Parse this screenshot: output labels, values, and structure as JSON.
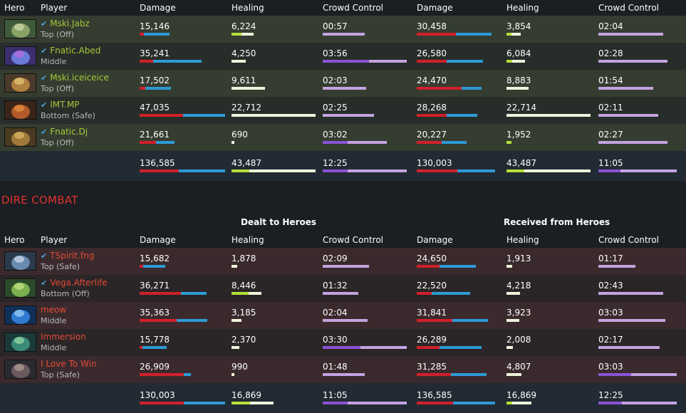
{
  "columns": {
    "hero": "Hero",
    "player": "Player",
    "damage": "Damage",
    "healing": "Healing",
    "cc": "Crowd Control"
  },
  "section_title": "DIRE COMBAT",
  "groups": {
    "dealt": "Dealt to Heroes",
    "received": "Received from Heroes"
  },
  "colors": {
    "damage_primary": "#d0202a",
    "damage_secondary": "#2d9bd6",
    "healing_primary": "#b5e03a",
    "healing_secondary": "#eef4dc",
    "cc_primary": "#8b52d6",
    "cc_secondary": "#c4a3e0",
    "radiant_name": "#a8c83a",
    "dire_name": "#e24a36"
  },
  "radiant": {
    "players": [
      {
        "name": "Mski.Jabz",
        "lane": "Top (Off)",
        "verified": true,
        "hero_icon": "hero-portrait-green",
        "dealt": {
          "damage": "15,146",
          "dmg_bar": [
            0.05,
            0.3
          ],
          "healing": "6,224",
          "heal_bar": [
            0.12,
            0.14
          ],
          "cc": "00:57",
          "cc_bar": [
            0.0,
            0.5
          ]
        },
        "received": {
          "damage": "30,458",
          "dmg_bar": [
            0.5,
            0.45
          ],
          "healing": "3,854",
          "heal_bar": [
            0.06,
            0.11
          ],
          "cc": "02:04",
          "cc_bar": [
            0.0,
            0.83
          ]
        }
      },
      {
        "name": "Fnatic.Abed",
        "lane": "Middle",
        "verified": true,
        "hero_icon": "hero-portrait-blue",
        "dealt": {
          "damage": "35,241",
          "dmg_bar": [
            0.16,
            0.57
          ],
          "healing": "4,250",
          "heal_bar": [
            0.0,
            0.17
          ],
          "cc": "03:56",
          "cc_bar": [
            0.55,
            0.45
          ]
        },
        "received": {
          "damage": "26,580",
          "dmg_bar": [
            0.38,
            0.46
          ],
          "healing": "6,084",
          "heal_bar": [
            0.07,
            0.15
          ],
          "cc": "02:28",
          "cc_bar": [
            0.0,
            0.88
          ]
        }
      },
      {
        "name": "Mski.iceiceice",
        "lane": "Top (Off)",
        "verified": true,
        "hero_icon": "hero-portrait-brown",
        "dealt": {
          "damage": "17,502",
          "dmg_bar": [
            0.07,
            0.3
          ],
          "healing": "9,611",
          "heal_bar": [
            0.0,
            0.4
          ],
          "cc": "02:03",
          "cc_bar": [
            0.0,
            0.52
          ]
        },
        "received": {
          "damage": "24,470",
          "dmg_bar": [
            0.57,
            0.25
          ],
          "healing": "8,883",
          "heal_bar": [
            0.0,
            0.26
          ],
          "cc": "01:54",
          "cc_bar": [
            0.0,
            0.7
          ]
        }
      },
      {
        "name": "IMT.MP",
        "lane": "Bottom (Safe)",
        "verified": true,
        "hero_icon": "hero-portrait-orange",
        "dealt": {
          "damage": "47,035",
          "dmg_bar": [
            0.51,
            0.49
          ],
          "healing": "22,712",
          "heal_bar": [
            0.0,
            1.0
          ],
          "cc": "02:25",
          "cc_bar": [
            0.0,
            0.61
          ]
        },
        "received": {
          "damage": "28,268",
          "dmg_bar": [
            0.38,
            0.39
          ],
          "healing": "22,714",
          "heal_bar": [
            0.0,
            1.0
          ],
          "cc": "02:11",
          "cc_bar": [
            0.0,
            0.76
          ]
        }
      },
      {
        "name": "Fnatic.Dj",
        "lane": "Top (Off)",
        "verified": true,
        "hero_icon": "hero-portrait-tan",
        "dealt": {
          "damage": "21,661",
          "dmg_bar": [
            0.19,
            0.22
          ],
          "healing": "690",
          "heal_bar": [
            0.0,
            0.03
          ],
          "cc": "03:02",
          "cc_bar": [
            0.3,
            0.47
          ]
        },
        "received": {
          "damage": "20,227",
          "dmg_bar": [
            0.32,
            0.32
          ],
          "healing": "1,952",
          "heal_bar": [
            0.06,
            0.0
          ],
          "cc": "02:27",
          "cc_bar": [
            0.0,
            0.88
          ]
        }
      }
    ],
    "totals": {
      "dealt": {
        "damage": "136,585",
        "dmg_bar": [
          0.46,
          0.54
        ],
        "healing": "43,487",
        "heal_bar": [
          0.21,
          0.79
        ],
        "cc": "12:25",
        "cc_bar": [
          0.3,
          0.7
        ]
      },
      "received": {
        "damage": "130,003",
        "dmg_bar": [
          0.52,
          0.48
        ],
        "healing": "43,487",
        "heal_bar": [
          0.21,
          0.79
        ],
        "cc": "11:05",
        "cc_bar": [
          0.28,
          0.72
        ]
      }
    }
  },
  "dire": {
    "players": [
      {
        "name": "TSpirit.fng",
        "lane": "Top (Safe)",
        "verified": true,
        "hero_icon": "hero-portrait-steel",
        "dealt": {
          "damage": "15,682",
          "dmg_bar": [
            0.04,
            0.26
          ],
          "healing": "1,878",
          "heal_bar": [
            0.0,
            0.07
          ],
          "cc": "02:09",
          "cc_bar": [
            0.0,
            0.55
          ]
        },
        "received": {
          "damage": "24,650",
          "dmg_bar": [
            0.29,
            0.46
          ],
          "healing": "1,913",
          "heal_bar": [
            0.0,
            0.07
          ],
          "cc": "01:17",
          "cc_bar": [
            0.0,
            0.47
          ]
        }
      },
      {
        "name": "Vega.Afterlife",
        "lane": "Bottom (Off)",
        "verified": true,
        "hero_icon": "hero-portrait-moss",
        "dealt": {
          "damage": "36,271",
          "dmg_bar": [
            0.48,
            0.3
          ],
          "healing": "8,446",
          "heal_bar": [
            0.2,
            0.15
          ],
          "cc": "01:32",
          "cc_bar": [
            0.0,
            0.42
          ]
        },
        "received": {
          "damage": "22,520",
          "dmg_bar": [
            0.19,
            0.49
          ],
          "healing": "4,218",
          "heal_bar": [
            0.0,
            0.16
          ],
          "cc": "02:43",
          "cc_bar": [
            0.0,
            0.83
          ]
        }
      },
      {
        "name": "meow",
        "lane": "Middle",
        "verified": false,
        "hero_icon": "hero-portrait-azure",
        "dealt": {
          "damage": "35,363",
          "dmg_bar": [
            0.43,
            0.36
          ],
          "healing": "3,185",
          "heal_bar": [
            0.0,
            0.12
          ],
          "cc": "02:04",
          "cc_bar": [
            0.0,
            0.53
          ]
        },
        "received": {
          "damage": "31,841",
          "dmg_bar": [
            0.45,
            0.45
          ],
          "healing": "3,923",
          "heal_bar": [
            0.0,
            0.15
          ],
          "cc": "03:03",
          "cc_bar": [
            0.0,
            0.85
          ]
        }
      },
      {
        "name": "Immersion",
        "lane": "Middle",
        "verified": false,
        "hero_icon": "hero-portrait-teal",
        "dealt": {
          "damage": "15,778",
          "dmg_bar": [
            0.03,
            0.28
          ],
          "healing": "2,370",
          "heal_bar": [
            0.0,
            0.09
          ],
          "cc": "03:30",
          "cc_bar": [
            0.45,
            0.55
          ]
        },
        "received": {
          "damage": "26,289",
          "dmg_bar": [
            0.29,
            0.54
          ],
          "healing": "2,008",
          "heal_bar": [
            0.0,
            0.08
          ],
          "cc": "02:17",
          "cc_bar": [
            0.0,
            0.78
          ]
        }
      },
      {
        "name": "I Love To Win",
        "lane": "Top (Safe)",
        "verified": false,
        "hero_icon": "hero-portrait-slate",
        "dealt": {
          "damage": "26,909",
          "dmg_bar": [
            0.52,
            0.08
          ],
          "healing": "990",
          "heal_bar": [
            0.0,
            0.03
          ],
          "cc": "01:48",
          "cc_bar": [
            0.0,
            0.5
          ]
        },
        "received": {
          "damage": "31,285",
          "dmg_bar": [
            0.44,
            0.45
          ],
          "healing": "4,807",
          "heal_bar": [
            0.0,
            0.18
          ],
          "cc": "03:03",
          "cc_bar": [
            0.42,
            0.58
          ]
        }
      }
    ],
    "totals": {
      "dealt": {
        "damage": "130,003",
        "dmg_bar": [
          0.52,
          0.48
        ],
        "healing": "16,869",
        "heal_bar": [
          0.22,
          0.28
        ],
        "cc": "11:05",
        "cc_bar": [
          0.3,
          0.7
        ]
      },
      "received": {
        "damage": "136,585",
        "dmg_bar": [
          0.46,
          0.54
        ],
        "healing": "16,869",
        "heal_bar": [
          0.07,
          0.23
        ],
        "cc": "12:25",
        "cc_bar": [
          0.3,
          0.7
        ]
      }
    }
  }
}
